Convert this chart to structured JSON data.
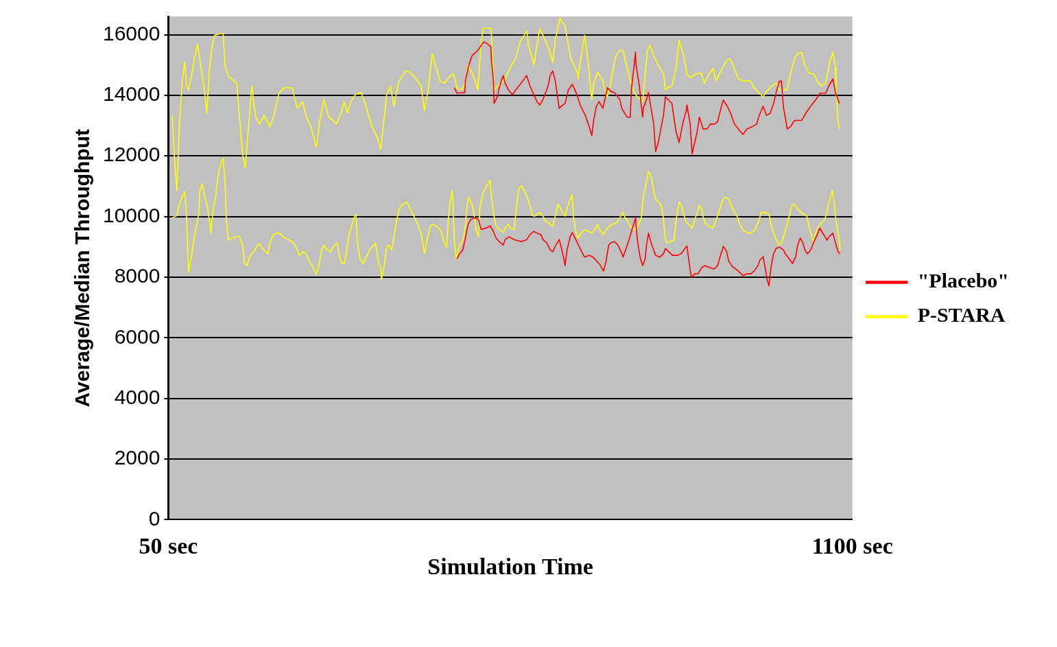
{
  "chart_data": {
    "type": "line",
    "xlabel": "Simulation Time",
    "ylabel": "Average/Median Throughput",
    "xlim": [
      50,
      1100
    ],
    "xticks": [
      {
        "value": 50,
        "label": "50 sec"
      },
      {
        "value": 1100,
        "label": "1100 sec"
      }
    ],
    "ylim": [
      0,
      16600
    ],
    "yticks": [
      0,
      2000,
      4000,
      6000,
      8000,
      10000,
      12000,
      14000,
      16000
    ],
    "grid": "y",
    "legend": "right",
    "series": [
      {
        "name": "\"Placebo\"",
        "color": "#ff0000",
        "x": [
          489,
          493,
          505,
          506,
          511,
          516,
          522,
          525,
          534,
          539,
          545,
          546,
          549,
          550,
          555,
          558,
          562,
          564,
          567,
          572,
          578,
          586,
          594,
          600,
          605,
          611,
          616,
          620,
          625,
          633,
          636,
          640,
          644,
          650,
          653,
          659,
          664,
          670,
          676,
          683,
          690,
          696,
          700,
          703,
          707,
          711,
          717,
          724,
          729,
          735,
          743,
          746,
          754,
          759,
          761,
          765,
          767,
          768,
          773,
          776,
          778,
          779,
          784,
          787,
          791,
          795,
          798,
          802,
          806,
          810,
          813,
          817,
          823,
          829,
          834,
          838,
          841,
          845,
          846,
          851,
          854,
          858,
          862,
          865,
          871,
          877,
          882,
          888,
          893,
          899,
          902,
          908,
          913,
          919,
          927,
          932,
          938,
          946,
          953,
          957,
          963,
          968,
          974,
          979,
          984,
          988,
          991,
          994,
          1000,
          1005,
          1011,
          1022,
          1030,
          1036,
          1044,
          1050,
          1059,
          1064,
          1070,
          1074,
          1080
        ],
        "values": [
          14250,
          14070,
          14090,
          14470,
          14970,
          15300,
          15420,
          15480,
          15760,
          15710,
          15600,
          15150,
          14470,
          13730,
          13950,
          14250,
          14540,
          14650,
          14400,
          14180,
          14020,
          14250,
          14470,
          14650,
          14310,
          14020,
          13790,
          13680,
          13860,
          14310,
          14650,
          14810,
          14470,
          13570,
          13640,
          13730,
          14180,
          14360,
          14090,
          13640,
          13340,
          12960,
          12670,
          13190,
          13640,
          13790,
          13570,
          14250,
          14130,
          14090,
          13860,
          13570,
          13280,
          13280,
          14250,
          14990,
          15420,
          14990,
          14310,
          13640,
          13280,
          13570,
          13860,
          14090,
          13570,
          13050,
          12150,
          12440,
          12890,
          13340,
          13950,
          13860,
          13730,
          12830,
          12440,
          12890,
          13190,
          13500,
          13680,
          13050,
          12060,
          12440,
          12830,
          13280,
          12890,
          12890,
          13050,
          13050,
          13120,
          13640,
          13840,
          13640,
          13410,
          13050,
          12830,
          12710,
          12890,
          12960,
          13050,
          13340,
          13640,
          13340,
          13410,
          13730,
          14180,
          14470,
          14470,
          13640,
          12890,
          12960,
          13170,
          13170,
          13460,
          13640,
          13860,
          14070,
          14070,
          14310,
          14540,
          14090,
          13730
        ]
      },
      {
        "color": "#ff0000",
        "x": [
          493,
          497,
          502,
          506,
          510,
          514,
          521,
          526,
          530,
          538,
          544,
          549,
          553,
          558,
          564,
          567,
          573,
          581,
          592,
          600,
          605,
          611,
          616,
          622,
          625,
          631,
          636,
          640,
          644,
          650,
          653,
          657,
          659,
          662,
          667,
          670,
          673,
          678,
          683,
          689,
          696,
          701,
          707,
          712,
          718,
          722,
          726,
          729,
          735,
          740,
          745,
          748,
          751,
          757,
          763,
          767,
          770,
          774,
          778,
          782,
          784,
          787,
          791,
          795,
          798,
          804,
          810,
          813,
          818,
          824,
          832,
          838,
          843,
          846,
          851,
          853,
          858,
          863,
          869,
          874,
          880,
          888,
          893,
          897,
          902,
          907,
          910,
          916,
          921,
          927,
          932,
          938,
          944,
          949,
          955,
          958,
          963,
          966,
          969,
          972,
          975,
          979,
          983,
          988,
          994,
          997,
          1003,
          1008,
          1013,
          1016,
          1020,
          1024,
          1027,
          1031,
          1036,
          1042,
          1046,
          1050,
          1053,
          1058,
          1061,
          1064,
          1070,
          1074,
          1078,
          1081
        ],
        "values": [
          8610,
          8770,
          8900,
          9290,
          9740,
          9900,
          9960,
          9900,
          9580,
          9620,
          9690,
          9510,
          9290,
          9170,
          9060,
          9240,
          9330,
          9240,
          9170,
          9240,
          9400,
          9510,
          9450,
          9400,
          9240,
          9130,
          8900,
          8840,
          9020,
          9240,
          8990,
          8610,
          8380,
          8900,
          9350,
          9470,
          9350,
          9130,
          8900,
          8660,
          8720,
          8680,
          8540,
          8430,
          8200,
          8540,
          9060,
          9130,
          9170,
          9060,
          8840,
          8660,
          8840,
          9220,
          9670,
          9960,
          9220,
          8680,
          8380,
          8610,
          9060,
          9450,
          9130,
          8900,
          8720,
          8660,
          8770,
          8950,
          8840,
          8720,
          8720,
          8790,
          8950,
          9020,
          8230,
          8000,
          8110,
          8110,
          8320,
          8380,
          8320,
          8270,
          8380,
          8680,
          9020,
          8840,
          8540,
          8340,
          8270,
          8160,
          8050,
          8110,
          8110,
          8200,
          8380,
          8560,
          8680,
          8320,
          7930,
          7710,
          8320,
          8770,
          8950,
          8990,
          8900,
          8770,
          8610,
          8450,
          8680,
          9060,
          9290,
          9130,
          8900,
          8770,
          8900,
          9220,
          9400,
          9620,
          9510,
          9330,
          9220,
          9330,
          9450,
          9130,
          8840,
          8770
        ]
      },
      {
        "name": "P-STARA",
        "color": "#ffff00",
        "x": [
          56,
          59,
          63,
          67,
          71,
          75,
          78,
          81,
          86,
          90,
          95,
          100,
          105,
          109,
          113,
          117,
          121,
          134,
          137,
          142,
          155,
          159,
          164,
          168,
          173,
          178,
          184,
          190,
          197,
          206,
          213,
          220,
          229,
          240,
          248,
          256,
          262,
          269,
          277,
          282,
          289,
          296,
          302,
          308,
          315,
          320,
          325,
          330,
          337,
          346,
          352,
          358,
          364,
          371,
          376,
          381,
          385,
          391,
          396,
          404,
          415,
          421,
          430,
          438,
          443,
          449,
          455,
          461,
          467,
          474,
          482,
          488,
          493,
          500,
          506,
          510,
          516,
          521,
          525,
          530,
          533,
          545,
          547,
          550,
          556,
          567,
          575,
          583,
          590,
          600,
          603,
          609,
          611,
          616,
          620,
          625,
          634,
          640,
          644,
          651,
          659,
          662,
          668,
          678,
          679,
          683,
          689,
          695,
          698,
          700,
          703,
          709,
          717,
          720,
          724,
          728,
          731,
          737,
          743,
          748,
          754,
          759,
          765,
          770,
          778,
          782,
          785,
          789,
          795,
          802,
          810,
          813,
          817,
          823,
          829,
          834,
          841,
          846,
          851,
          860,
          868,
          873,
          880,
          886,
          891,
          897,
          907,
          912,
          918,
          925,
          932,
          944,
          949,
          957,
          963,
          968,
          977,
          983,
          988,
          1000,
          1005,
          1011,
          1016,
          1022,
          1027,
          1033,
          1041,
          1046,
          1052,
          1059,
          1063,
          1066,
          1070,
          1074,
          1075,
          1078,
          1080
        ],
        "values": [
          13340,
          12060,
          10860,
          12960,
          14400,
          15100,
          14310,
          14180,
          14700,
          15210,
          15670,
          14920,
          14250,
          13410,
          14850,
          15600,
          15980,
          16050,
          14990,
          14630,
          14400,
          13340,
          12060,
          11600,
          12960,
          14310,
          13280,
          13050,
          13340,
          12960,
          13410,
          14090,
          14250,
          14250,
          13570,
          13790,
          13280,
          12960,
          12280,
          13120,
          13860,
          13280,
          13190,
          13050,
          13410,
          13790,
          13410,
          13790,
          14020,
          14090,
          13730,
          13280,
          12890,
          12600,
          12220,
          13190,
          14020,
          14310,
          13640,
          14470,
          14810,
          14760,
          14540,
          14310,
          13500,
          14180,
          15370,
          14920,
          14470,
          14400,
          14630,
          14700,
          14250,
          14180,
          14400,
          14990,
          14760,
          14470,
          14180,
          15670,
          16210,
          16210,
          15600,
          14180,
          14310,
          14540,
          14920,
          15210,
          15760,
          16120,
          15600,
          15210,
          14990,
          15670,
          16210,
          15980,
          15530,
          15080,
          15820,
          16550,
          16270,
          15890,
          15210,
          14740,
          14540,
          15210,
          15980,
          14990,
          14250,
          13860,
          14400,
          14760,
          14470,
          14180,
          13950,
          14310,
          14700,
          15300,
          15480,
          15480,
          14920,
          14470,
          14090,
          13950,
          13790,
          14700,
          15440,
          15670,
          15300,
          14990,
          14700,
          14180,
          14250,
          14310,
          14850,
          15820,
          15300,
          14700,
          14580,
          14700,
          14740,
          14400,
          14700,
          14880,
          14470,
          14760,
          15150,
          15210,
          14920,
          14540,
          14470,
          14470,
          14250,
          14070,
          13950,
          14130,
          14310,
          14400,
          14180,
          14180,
          14700,
          15210,
          15370,
          15420,
          14990,
          14740,
          14700,
          14470,
          14310,
          14400,
          14850,
          15150,
          15420,
          14920,
          14090,
          13190,
          12890
        ]
      },
      {
        "color": "#ffff00",
        "x": [
          56,
          63,
          67,
          75,
          78,
          81,
          86,
          89,
          92,
          97,
          98,
          102,
          106,
          109,
          114,
          115,
          119,
          123,
          126,
          130,
          134,
          137,
          139,
          142,
          147,
          153,
          159,
          164,
          167,
          171,
          175,
          181,
          186,
          190,
          193,
          197,
          203,
          206,
          210,
          215,
          221,
          226,
          234,
          242,
          248,
          251,
          257,
          262,
          266,
          271,
          277,
          281,
          285,
          288,
          294,
          299,
          305,
          309,
          312,
          316,
          320,
          324,
          327,
          331,
          335,
          338,
          340,
          344,
          349,
          354,
          359,
          365,
          368,
          372,
          376,
          377,
          382,
          385,
          388,
          393,
          400,
          404,
          407,
          413,
          416,
          422,
          428,
          433,
          439,
          443,
          446,
          452,
          455,
          463,
          469,
          472,
          477,
          480,
          483,
          486,
          489,
          492,
          497,
          502,
          506,
          508,
          511,
          516,
          519,
          522,
          526,
          528,
          533,
          536,
          539,
          544,
          545,
          549,
          553,
          558,
          564,
          567,
          572,
          575,
          581,
          584,
          588,
          592,
          595,
          601,
          605,
          609,
          612,
          620,
          625,
          629,
          634,
          640,
          644,
          648,
          651,
          655,
          659,
          662,
          667,
          670,
          672,
          676,
          679,
          683,
          689,
          695,
          700,
          706,
          709,
          712,
          718,
          724,
          731,
          739,
          743,
          748,
          751,
          754,
          759,
          765,
          770,
          776,
          779,
          784,
          787,
          791,
          795,
          798,
          806,
          810,
          812,
          815,
          821,
          826,
          830,
          834,
          838,
          841,
          845,
          851,
          854,
          858,
          862,
          865,
          869,
          871,
          874,
          880,
          886,
          891,
          896,
          901,
          905,
          910,
          913,
          918,
          924,
          927,
          932,
          940,
          946,
          951,
          957,
          960,
          966,
          972,
          975,
          979,
          983,
          988,
          992,
          996,
          1000,
          1003,
          1007,
          1011,
          1016,
          1022,
          1030,
          1033,
          1036,
          1041,
          1042,
          1046,
          1052,
          1058,
          1061,
          1064,
          1069,
          1072,
          1075,
          1080,
          1081
        ],
        "values": [
          9960,
          10030,
          10410,
          10820,
          10030,
          8160,
          8770,
          9220,
          9580,
          10120,
          10800,
          11090,
          10640,
          10410,
          9740,
          9450,
          10260,
          10710,
          11320,
          11700,
          11920,
          11160,
          9900,
          9220,
          9290,
          9330,
          9350,
          9060,
          8450,
          8380,
          8680,
          8840,
          9020,
          9110,
          8990,
          8880,
          8770,
          9130,
          9350,
          9450,
          9450,
          9330,
          9240,
          9130,
          8900,
          8720,
          8840,
          8770,
          8540,
          8380,
          8090,
          8380,
          8840,
          9060,
          8900,
          8840,
          9060,
          9130,
          8770,
          8450,
          8450,
          8900,
          9350,
          9670,
          9960,
          10080,
          9220,
          8610,
          8450,
          8680,
          8900,
          9060,
          9130,
          8540,
          8320,
          7930,
          8450,
          8990,
          9060,
          8900,
          9810,
          10230,
          10350,
          10460,
          10480,
          10230,
          9960,
          9740,
          9350,
          8770,
          9130,
          9670,
          9740,
          9670,
          9510,
          9220,
          8990,
          9960,
          10570,
          10860,
          9220,
          8610,
          9060,
          9220,
          9670,
          10260,
          10640,
          10410,
          10120,
          9580,
          9330,
          10260,
          10800,
          10910,
          11020,
          11200,
          10860,
          10120,
          9690,
          9580,
          9470,
          9620,
          9740,
          9620,
          9580,
          10260,
          10910,
          11020,
          10910,
          10640,
          10350,
          10030,
          10010,
          10140,
          10010,
          9850,
          9780,
          9670,
          10030,
          10410,
          10300,
          10140,
          10010,
          10260,
          10590,
          10710,
          9960,
          9450,
          9290,
          9450,
          9560,
          9510,
          9450,
          9620,
          9740,
          9560,
          9400,
          9620,
          9740,
          9810,
          9960,
          10140,
          9960,
          9900,
          9670,
          9560,
          9670,
          9960,
          10640,
          11160,
          11500,
          11320,
          10860,
          10570,
          10410,
          9960,
          9350,
          9130,
          9170,
          9220,
          9960,
          10480,
          10350,
          10080,
          9810,
          9690,
          9620,
          9900,
          10140,
          10370,
          10230,
          9960,
          9780,
          9690,
          9620,
          9900,
          10230,
          10570,
          10640,
          10570,
          10410,
          10190,
          9960,
          9740,
          9560,
          9450,
          9470,
          9580,
          9900,
          10140,
          10140,
          10080,
          9740,
          9450,
          9240,
          9060,
          9170,
          9450,
          9740,
          10030,
          10350,
          10410,
          10260,
          10120,
          10010,
          9740,
          9450,
          9130,
          9330,
          9620,
          9780,
          9920,
          10190,
          10480,
          10860,
          10480,
          9810,
          9220,
          8900
        ]
      }
    ]
  }
}
